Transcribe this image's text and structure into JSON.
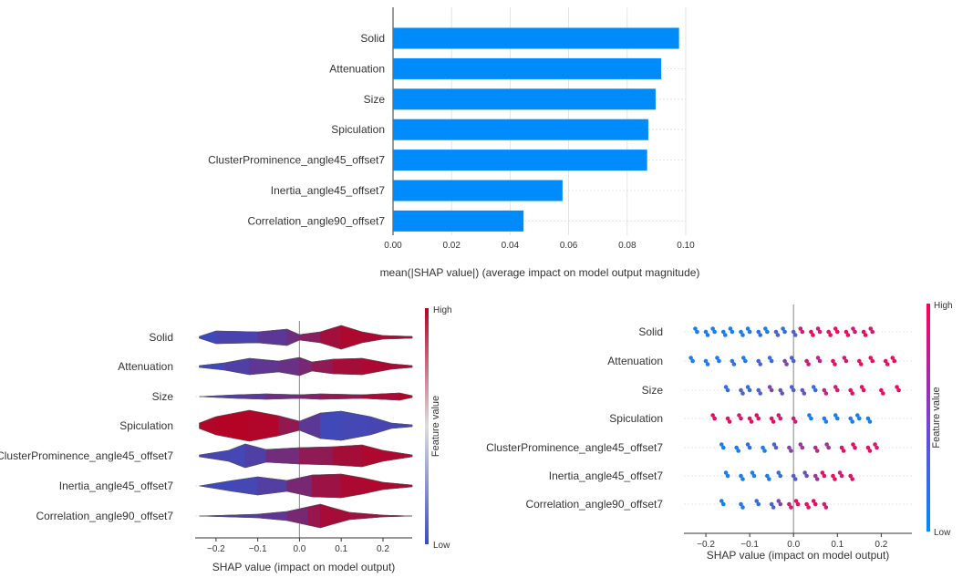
{
  "colors": {
    "bar": "#008bfb",
    "axis": "#333333",
    "grid": "#dddddd",
    "high": "#ff0052",
    "low": "#008bfb",
    "violin_high": "#b40426",
    "violin_low": "#3b4cc0"
  },
  "chart_data": [
    {
      "type": "bar",
      "orientation": "horizontal",
      "categories": [
        "Solid",
        "Attenuation",
        "Size",
        "Spiculation",
        "ClusterProminence_angle45_offset7",
        "Inertia_angle45_offset7",
        "Correlation_angle90_offset7"
      ],
      "values": [
        0.0977,
        0.0916,
        0.0897,
        0.0872,
        0.0868,
        0.0579,
        0.0446
      ],
      "xlabel": "mean(|SHAP value|) (average impact on model output magnitude)",
      "xticks": [
        "0.00",
        "0.02",
        "0.04",
        "0.06",
        "0.08",
        "0.10"
      ],
      "xlim": [
        0,
        0.1
      ],
      "grid": true
    },
    {
      "type": "violin",
      "categories": [
        "Solid",
        "Attenuation",
        "Size",
        "Spiculation",
        "ClusterProminence_angle45_offset7",
        "Inertia_angle45_offset7",
        "Correlation_angle90_offset7"
      ],
      "xlabel": "SHAP value (impact on model output)",
      "xticks": [
        "−0.2",
        "−0.1",
        "0.0",
        "0.1",
        "0.2"
      ],
      "xlim": [
        -0.25,
        0.27
      ],
      "colorbar": {
        "label": "Feature value",
        "high": "High",
        "low": "Low"
      }
    },
    {
      "type": "scatter",
      "categories": [
        "Solid",
        "Attenuation",
        "Size",
        "Spiculation",
        "ClusterProminence_angle45_offset7",
        "Inertia_angle45_offset7",
        "Correlation_angle90_offset7"
      ],
      "xlabel": "SHAP value (impact on model output)",
      "xticks": [
        "−0.2",
        "−0.1",
        "0.0",
        "0.1",
        "0.2"
      ],
      "xlim": [
        -0.25,
        0.27
      ],
      "colorbar": {
        "label": "Feature value",
        "high": "High",
        "low": "Low"
      },
      "series": [
        {
          "points": [
            [
              -0.22,
              0.1
            ],
            [
              -0.2,
              0.1
            ],
            [
              -0.18,
              0.1
            ],
            [
              -0.16,
              0.1
            ],
            [
              -0.14,
              0.1
            ],
            [
              -0.12,
              0.1
            ],
            [
              -0.1,
              0.1
            ],
            [
              -0.08,
              0.2
            ],
            [
              -0.06,
              0.1
            ],
            [
              -0.04,
              0.3
            ],
            [
              -0.02,
              0.2
            ],
            [
              0.0,
              0.3
            ],
            [
              0.02,
              0.8
            ],
            [
              0.04,
              0.9
            ],
            [
              0.06,
              0.8
            ],
            [
              0.08,
              0.9
            ],
            [
              0.1,
              0.9
            ],
            [
              0.12,
              0.9
            ],
            [
              0.14,
              0.8
            ],
            [
              0.16,
              0.9
            ],
            [
              0.18,
              0.8
            ]
          ]
        },
        {
          "points": [
            [
              -0.23,
              0.1
            ],
            [
              -0.2,
              0.1
            ],
            [
              -0.17,
              0.1
            ],
            [
              -0.14,
              0.2
            ],
            [
              -0.11,
              0.1
            ],
            [
              -0.08,
              0.3
            ],
            [
              -0.05,
              0.2
            ],
            [
              -0.02,
              0.5
            ],
            [
              0.0,
              0.3
            ],
            [
              0.03,
              0.8
            ],
            [
              0.06,
              0.7
            ],
            [
              0.09,
              0.9
            ],
            [
              0.12,
              0.8
            ],
            [
              0.15,
              0.9
            ],
            [
              0.18,
              0.9
            ],
            [
              0.21,
              0.9
            ],
            [
              0.23,
              0.9
            ]
          ]
        },
        {
          "points": [
            [
              -0.15,
              0.2
            ],
            [
              -0.12,
              0.3
            ],
            [
              -0.1,
              0.2
            ],
            [
              -0.08,
              0.3
            ],
            [
              -0.05,
              0.5
            ],
            [
              -0.03,
              0.4
            ],
            [
              0.0,
              0.3
            ],
            [
              0.02,
              0.4
            ],
            [
              0.05,
              0.2
            ],
            [
              0.07,
              0.7
            ],
            [
              0.1,
              0.8
            ],
            [
              0.13,
              0.9
            ],
            [
              0.16,
              0.9
            ],
            [
              0.2,
              0.9
            ],
            [
              0.24,
              0.9
            ]
          ]
        },
        {
          "points": [
            [
              -0.18,
              0.9
            ],
            [
              -0.15,
              0.9
            ],
            [
              -0.12,
              0.8
            ],
            [
              -0.1,
              0.9
            ],
            [
              -0.08,
              0.9
            ],
            [
              -0.05,
              0.9
            ],
            [
              -0.03,
              0.8
            ],
            [
              0.0,
              0.8
            ],
            [
              0.04,
              0.1
            ],
            [
              0.07,
              0.1
            ],
            [
              0.1,
              0.1
            ],
            [
              0.13,
              0.1
            ],
            [
              0.15,
              0.1
            ],
            [
              0.17,
              0.1
            ]
          ]
        },
        {
          "points": [
            [
              -0.16,
              0.1
            ],
            [
              -0.13,
              0.1
            ],
            [
              -0.1,
              0.2
            ],
            [
              -0.07,
              0.1
            ],
            [
              -0.04,
              0.3
            ],
            [
              -0.01,
              0.5
            ],
            [
              0.02,
              0.6
            ],
            [
              0.05,
              0.7
            ],
            [
              0.08,
              0.6
            ],
            [
              0.11,
              0.9
            ],
            [
              0.14,
              0.9
            ],
            [
              0.17,
              0.9
            ],
            [
              0.19,
              0.8
            ]
          ]
        },
        {
          "points": [
            [
              -0.15,
              0.1
            ],
            [
              -0.12,
              0.1
            ],
            [
              -0.09,
              0.1
            ],
            [
              -0.06,
              0.1
            ],
            [
              -0.03,
              0.2
            ],
            [
              0.0,
              0.3
            ],
            [
              0.03,
              0.4
            ],
            [
              0.05,
              0.6
            ],
            [
              0.07,
              0.9
            ],
            [
              0.09,
              0.9
            ],
            [
              0.11,
              0.8
            ],
            [
              0.13,
              0.9
            ]
          ]
        },
        {
          "points": [
            [
              -0.16,
              0.1
            ],
            [
              -0.12,
              0.1
            ],
            [
              -0.08,
              0.2
            ],
            [
              -0.05,
              0.3
            ],
            [
              -0.03,
              0.5
            ],
            [
              -0.01,
              0.8
            ],
            [
              0.01,
              0.9
            ],
            [
              0.03,
              0.9
            ],
            [
              0.05,
              0.9
            ],
            [
              0.07,
              0.8
            ]
          ]
        }
      ]
    }
  ]
}
